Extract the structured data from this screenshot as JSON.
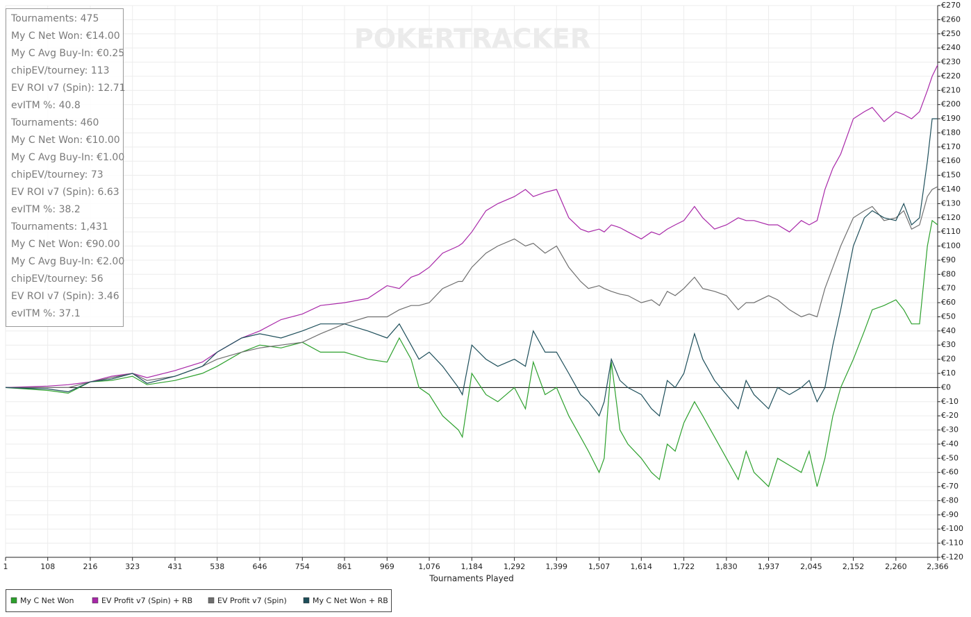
{
  "chart_data": {
    "type": "line",
    "watermark": "POKERTRACKER",
    "xlabel": "Tournaments Played",
    "stats": [
      "Tournaments: 475",
      "My C Net Won: €14.00",
      "My C Avg Buy-In: €0.25",
      "chipEV/tourney: 113",
      "EV ROI v7 (Spin): 12.71",
      "evITM %: 40.8",
      "Tournaments: 460",
      "My C Net Won: €10.00",
      "My C Avg Buy-In: €1.00",
      "chipEV/tourney: 73",
      "EV ROI v7 (Spin): 6.63",
      "evITM %: 38.2",
      "Tournaments: 1,431",
      "My C Net Won: €90.00",
      "My C Avg Buy-In: €2.00",
      "chipEV/tourney: 56",
      "EV ROI v7 (Spin): 3.46",
      "evITM %: 37.1"
    ],
    "grid": true,
    "legend": "bottom-left",
    "xlim": [
      1,
      2366
    ],
    "ylim": [
      -120,
      270
    ],
    "xticks": [
      1,
      108,
      216,
      323,
      431,
      538,
      646,
      754,
      861,
      969,
      {
        "value": 1076,
        "label": "1,076"
      },
      {
        "value": 1184,
        "label": "1,184"
      },
      {
        "value": 1292,
        "label": "1,292"
      },
      {
        "value": 1399,
        "label": "1,399"
      },
      {
        "value": 1507,
        "label": "1,507"
      },
      {
        "value": 1614,
        "label": "1,614"
      },
      {
        "value": 1722,
        "label": "1,722"
      },
      {
        "value": 1830,
        "label": "1,830"
      },
      {
        "value": 1937,
        "label": "1,937"
      },
      {
        "value": 2045,
        "label": "2,045"
      },
      {
        "value": 2152,
        "label": "2,152"
      },
      {
        "value": 2260,
        "label": "2,260"
      },
      {
        "value": 2366,
        "label": "2,366"
      }
    ],
    "yticks": [
      {
        "value": 270,
        "label": "€270"
      },
      {
        "value": 260,
        "label": "€260"
      },
      {
        "value": 250,
        "label": "€250"
      },
      {
        "value": 240,
        "label": "€240"
      },
      {
        "value": 230,
        "label": "€230"
      },
      {
        "value": 220,
        "label": "€220"
      },
      {
        "value": 210,
        "label": "€210"
      },
      {
        "value": 200,
        "label": "€200"
      },
      {
        "value": 190,
        "label": "€190"
      },
      {
        "value": 180,
        "label": "€180"
      },
      {
        "value": 170,
        "label": "€170"
      },
      {
        "value": 160,
        "label": "€160"
      },
      {
        "value": 150,
        "label": "€150"
      },
      {
        "value": 140,
        "label": "€140"
      },
      {
        "value": 130,
        "label": "€130"
      },
      {
        "value": 120,
        "label": "€120"
      },
      {
        "value": 110,
        "label": "€110"
      },
      {
        "value": 100,
        "label": "€100"
      },
      {
        "value": 90,
        "label": "€90"
      },
      {
        "value": 80,
        "label": "€80"
      },
      {
        "value": 70,
        "label": "€70"
      },
      {
        "value": 60,
        "label": "€60"
      },
      {
        "value": 50,
        "label": "€50"
      },
      {
        "value": 40,
        "label": "€40"
      },
      {
        "value": 30,
        "label": "€30"
      },
      {
        "value": 20,
        "label": "€20"
      },
      {
        "value": 10,
        "label": "€10"
      },
      {
        "value": 0,
        "label": "€0"
      },
      {
        "value": -10,
        "label": "€-10"
      },
      {
        "value": -20,
        "label": "€-20"
      },
      {
        "value": -30,
        "label": "€-30"
      },
      {
        "value": -40,
        "label": "€-40"
      },
      {
        "value": -50,
        "label": "€-50"
      },
      {
        "value": -60,
        "label": "€-60"
      },
      {
        "value": -70,
        "label": "€-70"
      },
      {
        "value": -80,
        "label": "€-80"
      },
      {
        "value": -90,
        "label": "€-90"
      },
      {
        "value": -100,
        "label": "€-100"
      },
      {
        "value": -110,
        "label": "€-110"
      },
      {
        "value": -120,
        "label": "€-120"
      }
    ],
    "x": [
      1,
      108,
      160,
      216,
      270,
      323,
      360,
      431,
      500,
      538,
      600,
      646,
      700,
      754,
      800,
      861,
      920,
      969,
      1000,
      1030,
      1050,
      1076,
      1110,
      1150,
      1160,
      1184,
      1220,
      1250,
      1292,
      1320,
      1340,
      1370,
      1399,
      1430,
      1460,
      1480,
      1507,
      1520,
      1538,
      1560,
      1580,
      1614,
      1640,
      1660,
      1680,
      1700,
      1722,
      1749,
      1770,
      1800,
      1830,
      1860,
      1880,
      1900,
      1937,
      1960,
      1990,
      2020,
      2040,
      2060,
      2080,
      2100,
      2120,
      2152,
      2180,
      2200,
      2230,
      2260,
      2280,
      2300,
      2320,
      2340,
      2352,
      2366
    ],
    "series": [
      {
        "name": "My C Net Won",
        "color": "#2ca02c",
        "values": [
          0,
          -2,
          -4,
          4,
          5,
          8,
          2,
          5,
          10,
          15,
          25,
          30,
          28,
          32,
          25,
          25,
          20,
          18,
          35,
          20,
          0,
          -5,
          -20,
          -30,
          -35,
          10,
          -5,
          -10,
          0,
          -15,
          18,
          -5,
          0,
          -20,
          -35,
          -45,
          -60,
          -50,
          18,
          -30,
          -40,
          -50,
          -60,
          -65,
          -40,
          -45,
          -25,
          -10,
          -20,
          -35,
          -50,
          -65,
          -45,
          -60,
          -70,
          -50,
          -55,
          -60,
          -45,
          -70,
          -50,
          -20,
          0,
          20,
          40,
          55,
          58,
          62,
          55,
          45,
          45,
          100,
          118,
          115
        ]
      },
      {
        "name": "EV Profit v7 (Spin) + RB",
        "color": "#a827a8",
        "values": [
          0,
          1,
          2,
          4,
          8,
          10,
          7,
          12,
          18,
          25,
          35,
          40,
          48,
          52,
          58,
          60,
          63,
          72,
          70,
          78,
          80,
          85,
          95,
          100,
          102,
          110,
          125,
          130,
          135,
          140,
          135,
          138,
          140,
          120,
          112,
          110,
          112,
          110,
          115,
          113,
          110,
          105,
          110,
          108,
          112,
          115,
          118,
          128,
          120,
          112,
          115,
          120,
          118,
          118,
          115,
          115,
          110,
          118,
          115,
          118,
          140,
          155,
          165,
          190,
          195,
          198,
          188,
          195,
          193,
          190,
          195,
          210,
          220,
          228
        ]
      },
      {
        "name": "EV Profit v7 (Spin)",
        "color": "#6e6e6e",
        "values": [
          0,
          0,
          0,
          4,
          7,
          10,
          5,
          8,
          15,
          20,
          25,
          28,
          30,
          32,
          38,
          45,
          50,
          50,
          55,
          58,
          58,
          60,
          70,
          75,
          75,
          85,
          95,
          100,
          105,
          100,
          102,
          95,
          100,
          85,
          75,
          70,
          72,
          70,
          68,
          66,
          65,
          60,
          62,
          58,
          68,
          65,
          70,
          78,
          70,
          68,
          65,
          55,
          60,
          60,
          65,
          62,
          55,
          50,
          52,
          50,
          70,
          85,
          100,
          120,
          125,
          128,
          118,
          120,
          125,
          112,
          115,
          135,
          140,
          142
        ]
      },
      {
        "name": "My C Net Won + RB",
        "color": "#1d4e5a",
        "values": [
          0,
          -1,
          -3,
          4,
          6,
          10,
          3,
          8,
          15,
          25,
          35,
          38,
          35,
          40,
          45,
          45,
          40,
          35,
          45,
          30,
          20,
          25,
          15,
          0,
          -5,
          30,
          20,
          15,
          20,
          15,
          40,
          25,
          25,
          10,
          -5,
          -10,
          -20,
          -10,
          20,
          5,
          0,
          -5,
          -15,
          -20,
          5,
          0,
          10,
          38,
          20,
          5,
          -5,
          -15,
          5,
          -5,
          -15,
          0,
          -5,
          0,
          5,
          -10,
          0,
          30,
          55,
          100,
          120,
          125,
          120,
          118,
          130,
          115,
          120,
          160,
          190,
          190
        ]
      }
    ]
  }
}
